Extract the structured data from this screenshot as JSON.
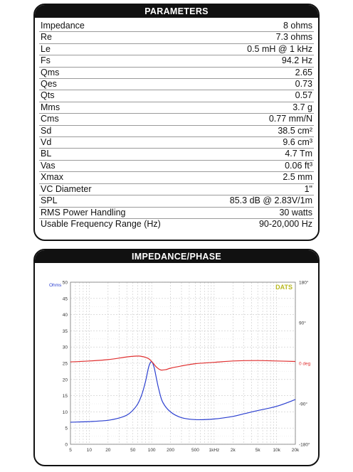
{
  "parameters": {
    "title": "PARAMETERS",
    "rows": [
      {
        "label": "Impedance",
        "value": "8 ohms"
      },
      {
        "label": "Re",
        "value": "7.3 ohms"
      },
      {
        "label": "Le",
        "value": "0.5 mH @ 1 kHz"
      },
      {
        "label": "Fs",
        "value": "94.2 Hz"
      },
      {
        "label": "Qms",
        "value": "2.65"
      },
      {
        "label": "Qes",
        "value": "0.73"
      },
      {
        "label": "Qts",
        "value": "0.57"
      },
      {
        "label": "Mms",
        "value": "3.7 g"
      },
      {
        "label": "Cms",
        "value": "0.77 mm/N"
      },
      {
        "label": "Sd",
        "value": "38.5 cm²"
      },
      {
        "label": "Vd",
        "value": "9.6 cm³"
      },
      {
        "label": "BL",
        "value": "4.7 Tm"
      },
      {
        "label": "Vas",
        "value": "0.06 ft³"
      },
      {
        "label": "Xmax",
        "value": "2.5 mm"
      },
      {
        "label": "VC Diameter",
        "value": "1\""
      },
      {
        "label": "SPL",
        "value": "85.3 dB @ 2.83V/1m"
      },
      {
        "label": "RMS Power Handling",
        "value": "30 watts"
      },
      {
        "label": "Usable Frequency Range (Hz)",
        "value": "90-20,000 Hz"
      }
    ]
  },
  "impedance_panel": {
    "title": "IMPEDANCE/PHASE",
    "brand": "DATS",
    "colors": {
      "impedance": "#2b3fd0",
      "phase": "#e03030",
      "brand": "#b8b820",
      "ohms_label": "#2b3fd0",
      "dep_label": "#e03030"
    }
  },
  "chart_data": {
    "type": "line",
    "x_scale": "log",
    "xlim": [
      5,
      20000
    ],
    "x_ticks": [
      5,
      10,
      20,
      50,
      100,
      200,
      500,
      1000,
      2000,
      5000,
      10000,
      20000
    ],
    "x_tick_labels": [
      "5",
      "10",
      "20",
      "50",
      "100",
      "200",
      "500",
      "1kHz",
      "2k",
      "5k",
      "10k",
      "20k"
    ],
    "y_left_label": "Ohms",
    "ylim_left": [
      0,
      50
    ],
    "y_left_ticks": [
      0,
      5,
      10,
      15,
      20,
      25,
      30,
      35,
      40,
      45,
      50
    ],
    "y_right_label": "deg",
    "ylim_right": [
      -180,
      180
    ],
    "y_right_ticks": [
      180,
      90,
      0,
      -90,
      -180
    ],
    "y_right_tick_labels": [
      "180°",
      "90°",
      "0 deg",
      "-90°",
      "-180°"
    ],
    "grid": true,
    "series": [
      {
        "axis": "left",
        "x": [
          5,
          10,
          20,
          30,
          40,
          50,
          60,
          70,
          80,
          90,
          100,
          110,
          120,
          130,
          150,
          200,
          300,
          500,
          1000,
          2000,
          3000,
          5000,
          10000,
          20000
        ],
        "y": [
          6.8,
          7.0,
          7.4,
          8.1,
          9.0,
          10.5,
          12.5,
          15.5,
          19.5,
          24.0,
          25.5,
          23.5,
          20.0,
          17.0,
          13.0,
          10.0,
          8.2,
          7.6,
          7.8,
          8.6,
          9.4,
          10.4,
          11.7,
          13.8
        ]
      },
      {
        "axis": "right",
        "x": [
          5,
          10,
          20,
          40,
          60,
          70,
          80,
          90,
          100,
          110,
          120,
          140,
          170,
          200,
          300,
          500,
          1000,
          2000,
          5000,
          10000,
          20000
        ],
        "y": [
          3,
          5,
          8,
          14,
          16,
          15,
          13,
          10,
          4,
          -3,
          -9,
          -15,
          -14,
          -11,
          -6,
          -1,
          2,
          5,
          6,
          5,
          4
        ]
      }
    ]
  }
}
